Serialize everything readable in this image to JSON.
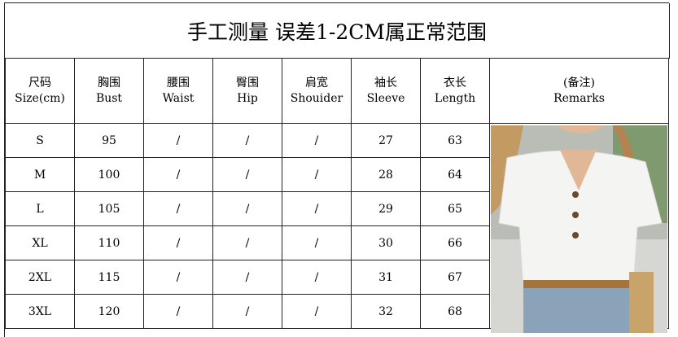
{
  "title": "手工测量  误差1-2CM属正常范围",
  "headers": [
    {
      "cn": "尺码",
      "en": "Size(cm)"
    },
    {
      "cn": "胸围",
      "en": "Bust"
    },
    {
      "cn": "腰围",
      "en": "Waist"
    },
    {
      "cn": "臀围",
      "en": "Hip"
    },
    {
      "cn": "肩宽",
      "en": "Shouider"
    },
    {
      "cn": "袖长",
      "en": "Sleeve"
    },
    {
      "cn": "衣长",
      "en": "Length"
    },
    {
      "cn": "(备注)",
      "en": "Remarks"
    }
  ],
  "rows": [
    [
      "S",
      "95",
      "/",
      "/",
      "/",
      "27",
      "63"
    ],
    [
      "M",
      "100",
      "/",
      "/",
      "/",
      "28",
      "64"
    ],
    [
      "L",
      "105",
      "/",
      "/",
      "/",
      "29",
      "65"
    ],
    [
      "XL",
      "110",
      "/",
      "/",
      "/",
      "30",
      "66"
    ],
    [
      "2XL",
      "115",
      "/",
      "/",
      "/",
      "31",
      "67"
    ],
    [
      "3XL",
      "120",
      "/",
      "/",
      "/",
      "32",
      "68"
    ]
  ],
  "image": {
    "subject": "white short-sleeve V-neck button blouse",
    "colors": {
      "top": "#f4f4f2",
      "denim": "#8aa3b8",
      "hair": "#c49a63",
      "background": "#b9bdb6"
    }
  }
}
